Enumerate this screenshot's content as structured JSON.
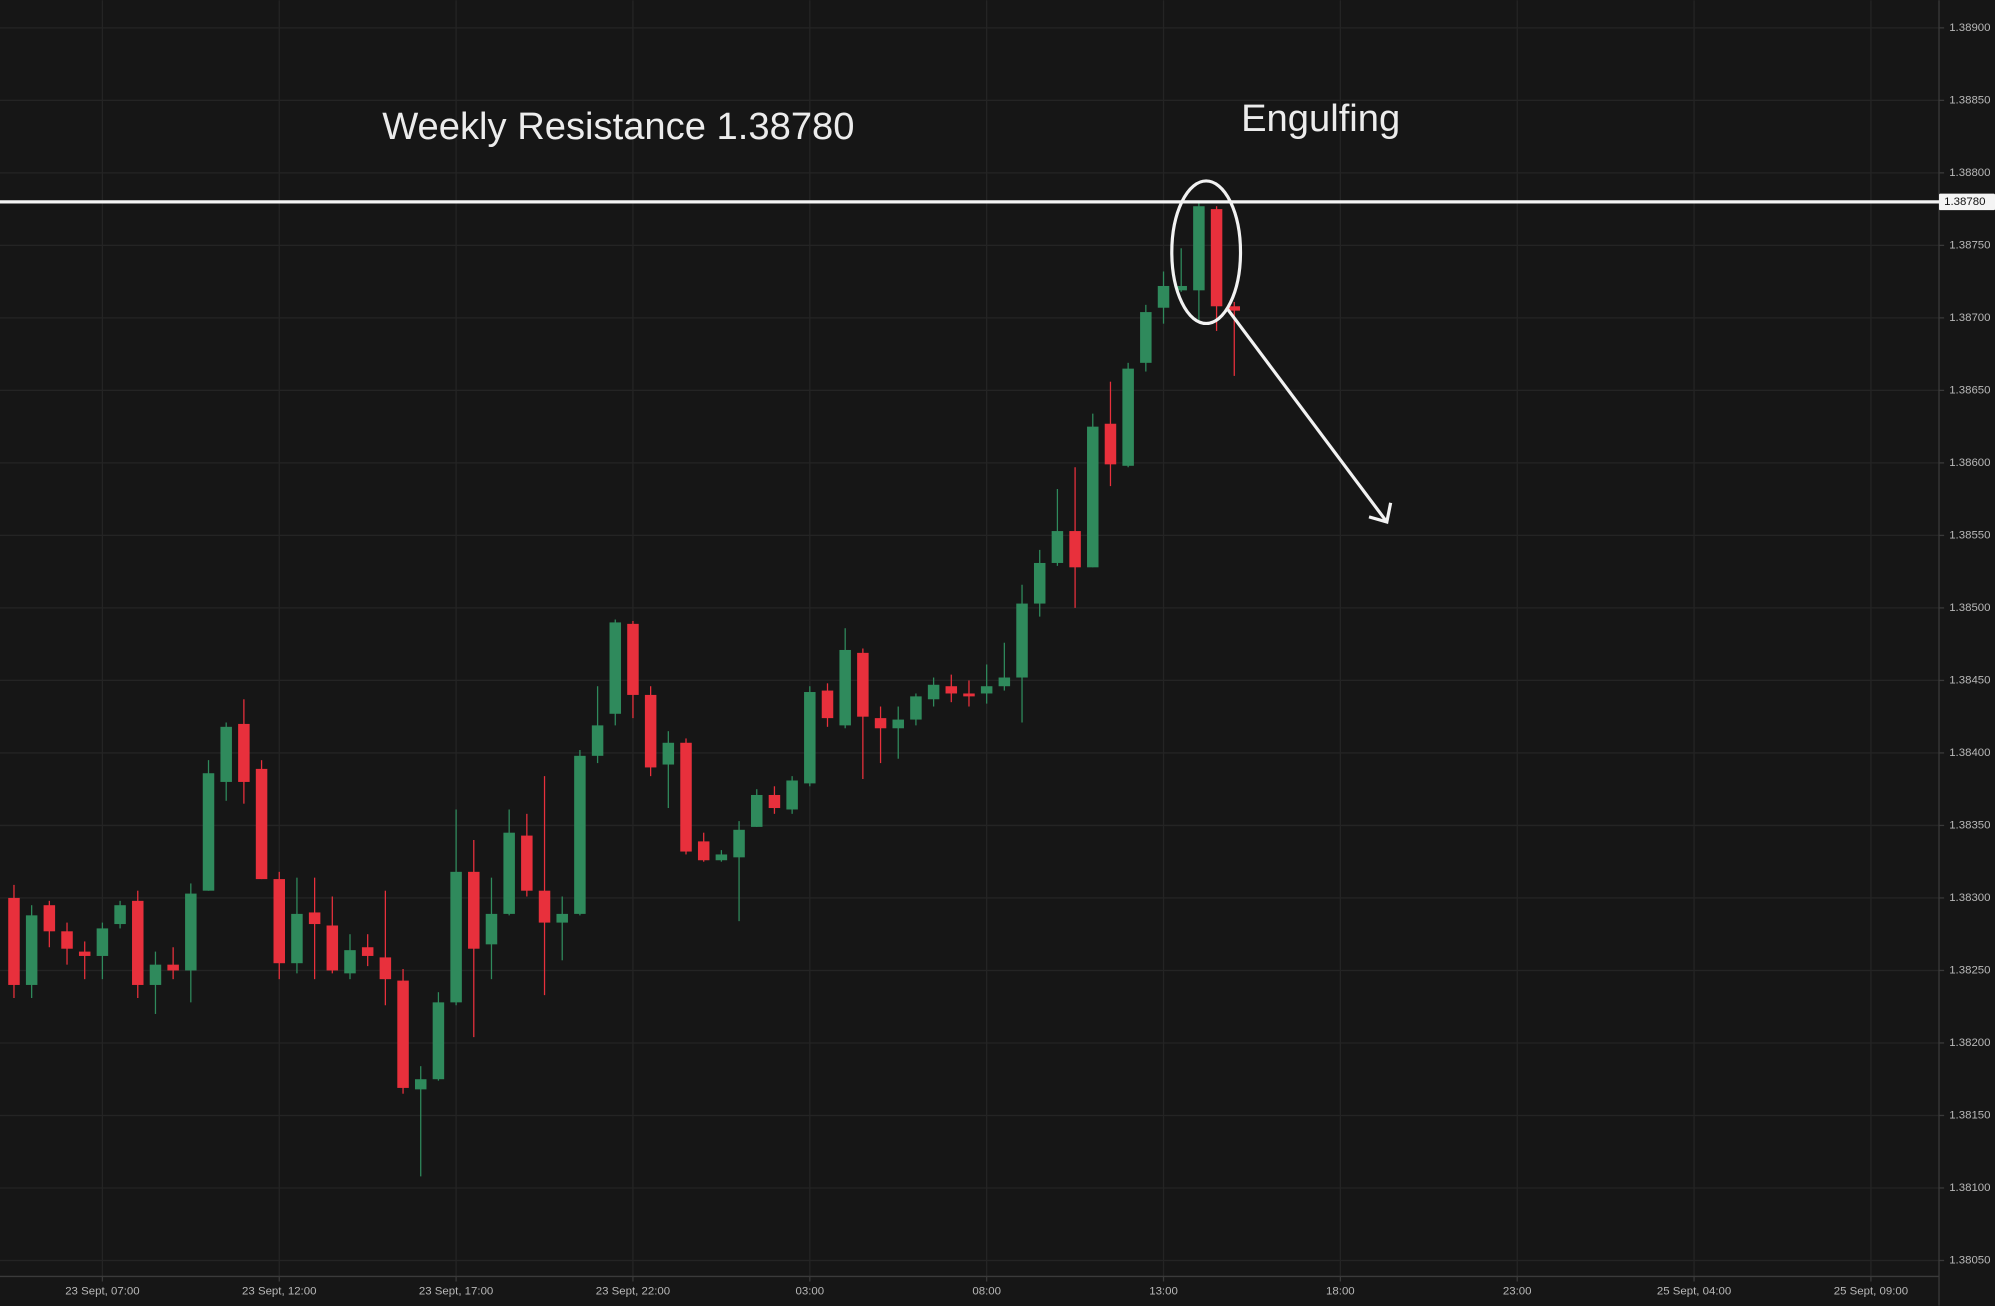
{
  "chart_data": {
    "type": "candlestick",
    "annotations": [
      "Weekly Resistance 1.38780",
      "Engulfing"
    ],
    "hline": {
      "value": 1.3878,
      "label": "1.38780"
    },
    "up_color": "#2f8a5c",
    "down_color": "#e8303c",
    "grid": true,
    "xlim": [
      -0.79,
      108.85
    ],
    "xticks": [
      {
        "value": 5,
        "label": "23 Sept, 07:00"
      },
      {
        "value": 15,
        "label": "23 Sept, 12:00"
      },
      {
        "value": 25,
        "label": "23 Sept, 17:00"
      },
      {
        "value": 35,
        "label": "23 Sept, 22:00"
      },
      {
        "value": 45,
        "label": "03:00"
      },
      {
        "value": 55,
        "label": "08:00"
      },
      {
        "value": 65,
        "label": "13:00"
      },
      {
        "value": 75,
        "label": "18:00"
      },
      {
        "value": 85,
        "label": "23:00"
      },
      {
        "value": 95,
        "label": "25 Sept, 04:00"
      },
      {
        "value": 105,
        "label": "25 Sept, 09:00"
      }
    ],
    "ylim": [
      1.38039,
      1.38919
    ],
    "yticks": [
      {
        "value": 1.389,
        "label": "1.38900"
      },
      {
        "value": 1.3885,
        "label": "1.38850"
      },
      {
        "value": 1.388,
        "label": "1.38800"
      },
      {
        "value": 1.3875,
        "label": "1.38750"
      },
      {
        "value": 1.387,
        "label": "1.38700"
      },
      {
        "value": 1.3865,
        "label": "1.38650"
      },
      {
        "value": 1.386,
        "label": "1.38600"
      },
      {
        "value": 1.3855,
        "label": "1.38550"
      },
      {
        "value": 1.385,
        "label": "1.38500"
      },
      {
        "value": 1.3845,
        "label": "1.38450"
      },
      {
        "value": 1.384,
        "label": "1.38400"
      },
      {
        "value": 1.3835,
        "label": "1.38350"
      },
      {
        "value": 1.383,
        "label": "1.38300"
      },
      {
        "value": 1.3825,
        "label": "1.38250"
      },
      {
        "value": 1.382,
        "label": "1.38200"
      },
      {
        "value": 1.3815,
        "label": "1.38150"
      },
      {
        "value": 1.381,
        "label": "1.38100"
      },
      {
        "value": 1.3805,
        "label": "1.38050"
      }
    ],
    "open": [
      1.383,
      1.3824,
      1.38295,
      1.38277,
      1.38263,
      1.3826,
      1.38282,
      1.38298,
      1.3824,
      1.38254,
      1.3825,
      1.38305,
      1.3838,
      1.3842,
      1.38389,
      1.38313,
      1.38255,
      1.3829,
      1.38281,
      1.38248,
      1.38266,
      1.38259,
      1.38243,
      1.38168,
      1.38175,
      1.38228,
      1.38318,
      1.38268,
      1.38289,
      1.38343,
      1.38305,
      1.38283,
      1.38289,
      1.38398,
      1.38427,
      1.38489,
      1.3844,
      1.38392,
      1.38407,
      1.38339,
      1.38326,
      1.38328,
      1.38349,
      1.38371,
      1.38361,
      1.38379,
      1.38443,
      1.38419,
      1.38469,
      1.38424,
      1.38417,
      1.38423,
      1.38437,
      1.38446,
      1.38441,
      1.38441,
      1.38446,
      1.38452,
      1.38503,
      1.38531,
      1.38553,
      1.38528,
      1.38627,
      1.38598,
      1.38669,
      1.38707,
      1.38719,
      1.38719,
      1.38775,
      1.38708
    ],
    "high": [
      1.38309,
      1.38295,
      1.38298,
      1.38283,
      1.3827,
      1.38283,
      1.38298,
      1.38305,
      1.38263,
      1.38266,
      1.3831,
      1.38395,
      1.38421,
      1.38437,
      1.38395,
      1.38318,
      1.38314,
      1.38314,
      1.38301,
      1.38275,
      1.38275,
      1.38305,
      1.38251,
      1.38184,
      1.38235,
      1.38361,
      1.3834,
      1.38314,
      1.38361,
      1.38358,
      1.38384,
      1.38301,
      1.38402,
      1.38446,
      1.38492,
      1.38491,
      1.38446,
      1.38415,
      1.3841,
      1.38345,
      1.38333,
      1.38353,
      1.38375,
      1.38377,
      1.38384,
      1.38446,
      1.38448,
      1.38486,
      1.38472,
      1.38432,
      1.38432,
      1.38441,
      1.38452,
      1.38454,
      1.3845,
      1.38461,
      1.38476,
      1.38516,
      1.3854,
      1.38582,
      1.38597,
      1.38634,
      1.38656,
      1.38669,
      1.38709,
      1.38732,
      1.38748,
      1.38779,
      1.38777,
      1.38711
    ],
    "low": [
      1.38231,
      1.38231,
      1.38266,
      1.38254,
      1.38244,
      1.38244,
      1.38279,
      1.38231,
      1.3822,
      1.38244,
      1.38228,
      1.38305,
      1.38367,
      1.38365,
      1.38313,
      1.38244,
      1.38248,
      1.38244,
      1.38248,
      1.38244,
      1.38253,
      1.38226,
      1.38165,
      1.38108,
      1.38174,
      1.38226,
      1.38204,
      1.38244,
      1.38288,
      1.38301,
      1.38233,
      1.38257,
      1.38288,
      1.38393,
      1.38419,
      1.38424,
      1.38384,
      1.38362,
      1.3833,
      1.38325,
      1.38325,
      1.38284,
      1.38349,
      1.38358,
      1.38358,
      1.38377,
      1.38418,
      1.38417,
      1.38382,
      1.38393,
      1.38396,
      1.38419,
      1.38432,
      1.38435,
      1.38432,
      1.38434,
      1.38443,
      1.38421,
      1.38494,
      1.38529,
      1.385,
      1.38528,
      1.38584,
      1.38597,
      1.38663,
      1.38696,
      1.38718,
      1.38698,
      1.38691,
      1.3866
    ],
    "close": [
      1.3824,
      1.38288,
      1.38277,
      1.38265,
      1.3826,
      1.38279,
      1.38295,
      1.3824,
      1.38254,
      1.3825,
      1.38303,
      1.38386,
      1.38418,
      1.3838,
      1.38313,
      1.38255,
      1.38289,
      1.38282,
      1.3825,
      1.38264,
      1.3826,
      1.38244,
      1.38169,
      1.38175,
      1.38228,
      1.38318,
      1.38265,
      1.38289,
      1.38345,
      1.38305,
      1.38283,
      1.38289,
      1.38398,
      1.38419,
      1.3849,
      1.3844,
      1.3839,
      1.38407,
      1.38332,
      1.38326,
      1.3833,
      1.38347,
      1.38371,
      1.38362,
      1.38381,
      1.38442,
      1.38424,
      1.38471,
      1.38425,
      1.38417,
      1.38423,
      1.38439,
      1.38447,
      1.38441,
      1.38439,
      1.38446,
      1.38452,
      1.38503,
      1.38531,
      1.38553,
      1.38528,
      1.38625,
      1.38599,
      1.38665,
      1.38704,
      1.38722,
      1.38722,
      1.38777,
      1.38708,
      1.38705
    ]
  }
}
